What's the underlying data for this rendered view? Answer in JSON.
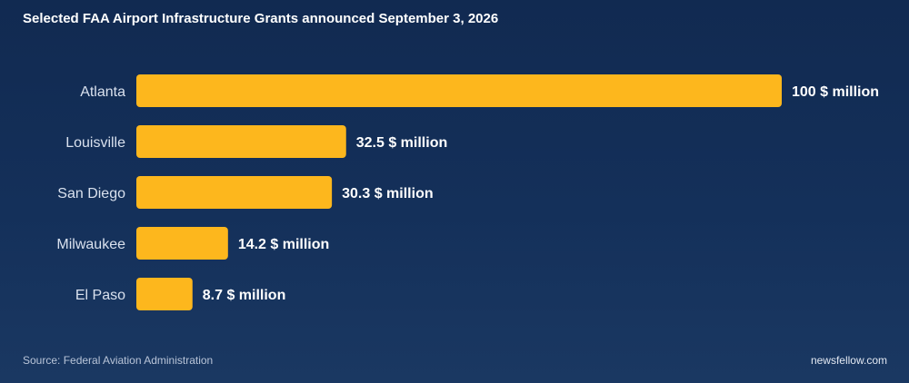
{
  "colors": {
    "bar": "#fdb71d",
    "background": "#14305a"
  },
  "chart_data": {
    "type": "bar",
    "orientation": "horizontal",
    "title": "Selected FAA Airport Infrastructure Grants announced September 3, 2026",
    "categories": [
      "Atlanta",
      "Louisville",
      "San Diego",
      "Milwaukee",
      "El Paso"
    ],
    "values": [
      100,
      32.5,
      30.3,
      14.2,
      8.7
    ],
    "value_labels": [
      "100 $ million",
      "32.5 $ million",
      "30.3 $ million",
      "14.2 $ million",
      "8.7 $ million"
    ],
    "unit": "$ million",
    "xlim": [
      0,
      100
    ],
    "grid": false,
    "legend": "none"
  },
  "footer": {
    "source": "Source: Federal Aviation Administration",
    "brand": "newsfellow.com"
  }
}
